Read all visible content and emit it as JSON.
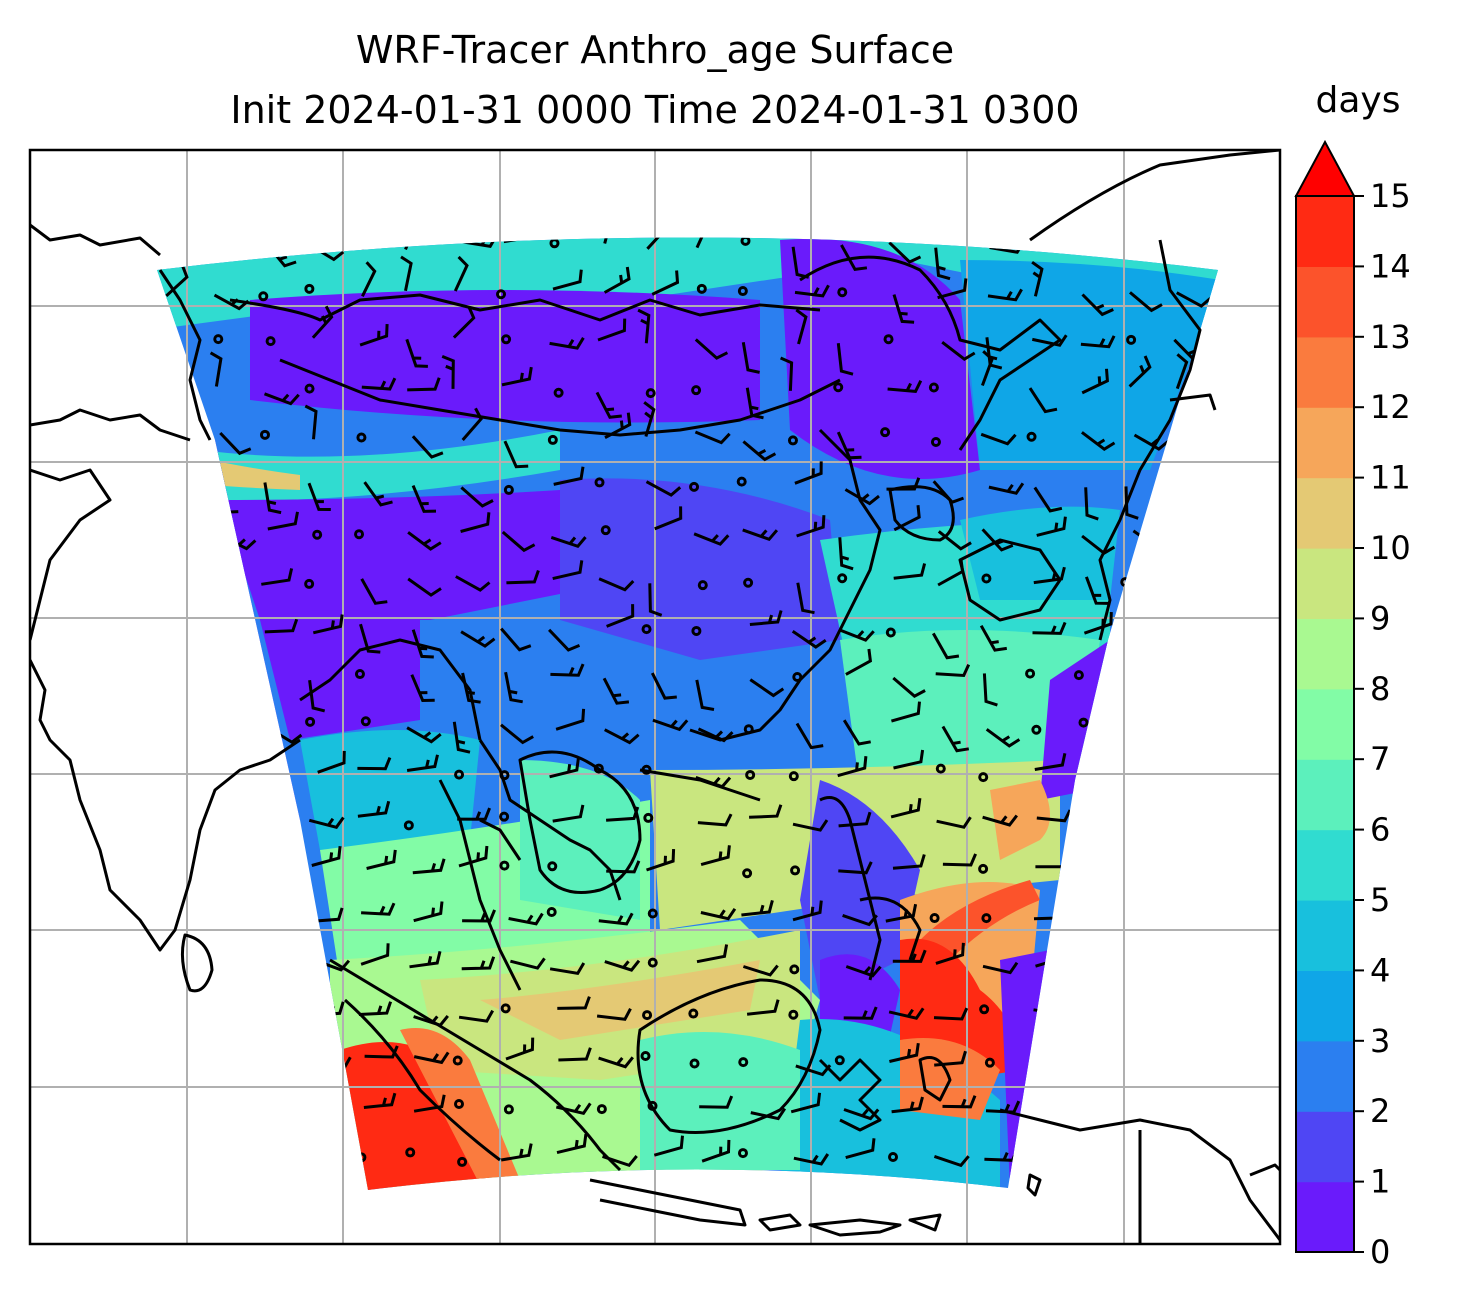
{
  "title": {
    "line1": "WRF-Tracer Anthro_age Surface",
    "line2": "Init 2024-01-31 0000 Time 2024-01-31 0300"
  },
  "colorbar": {
    "unit_label": "days",
    "extend": "max",
    "levels": [
      0,
      1,
      2,
      3,
      4,
      5,
      6,
      7,
      8,
      9,
      10,
      11,
      12,
      13,
      14,
      15
    ],
    "tick_labels": [
      "0",
      "1",
      "2",
      "3",
      "4",
      "5",
      "6",
      "7",
      "8",
      "9",
      "10",
      "11",
      "12",
      "13",
      "14",
      "15"
    ],
    "colors": [
      "#6a1bfb",
      "#4f46f4",
      "#2b7ff0",
      "#0fa6e7",
      "#18c0dd",
      "#30dcd0",
      "#5cf0bc",
      "#82fca6",
      "#a9f991",
      "#c9e67f",
      "#e4c974",
      "#f6a65a",
      "#fa7b3e",
      "#fc532b",
      "#ff2a13"
    ],
    "over_color": "#ff0000"
  },
  "map": {
    "projection": "Lambert conformal",
    "gridlines": true,
    "wind_barbs": true,
    "coastlines": true
  }
}
